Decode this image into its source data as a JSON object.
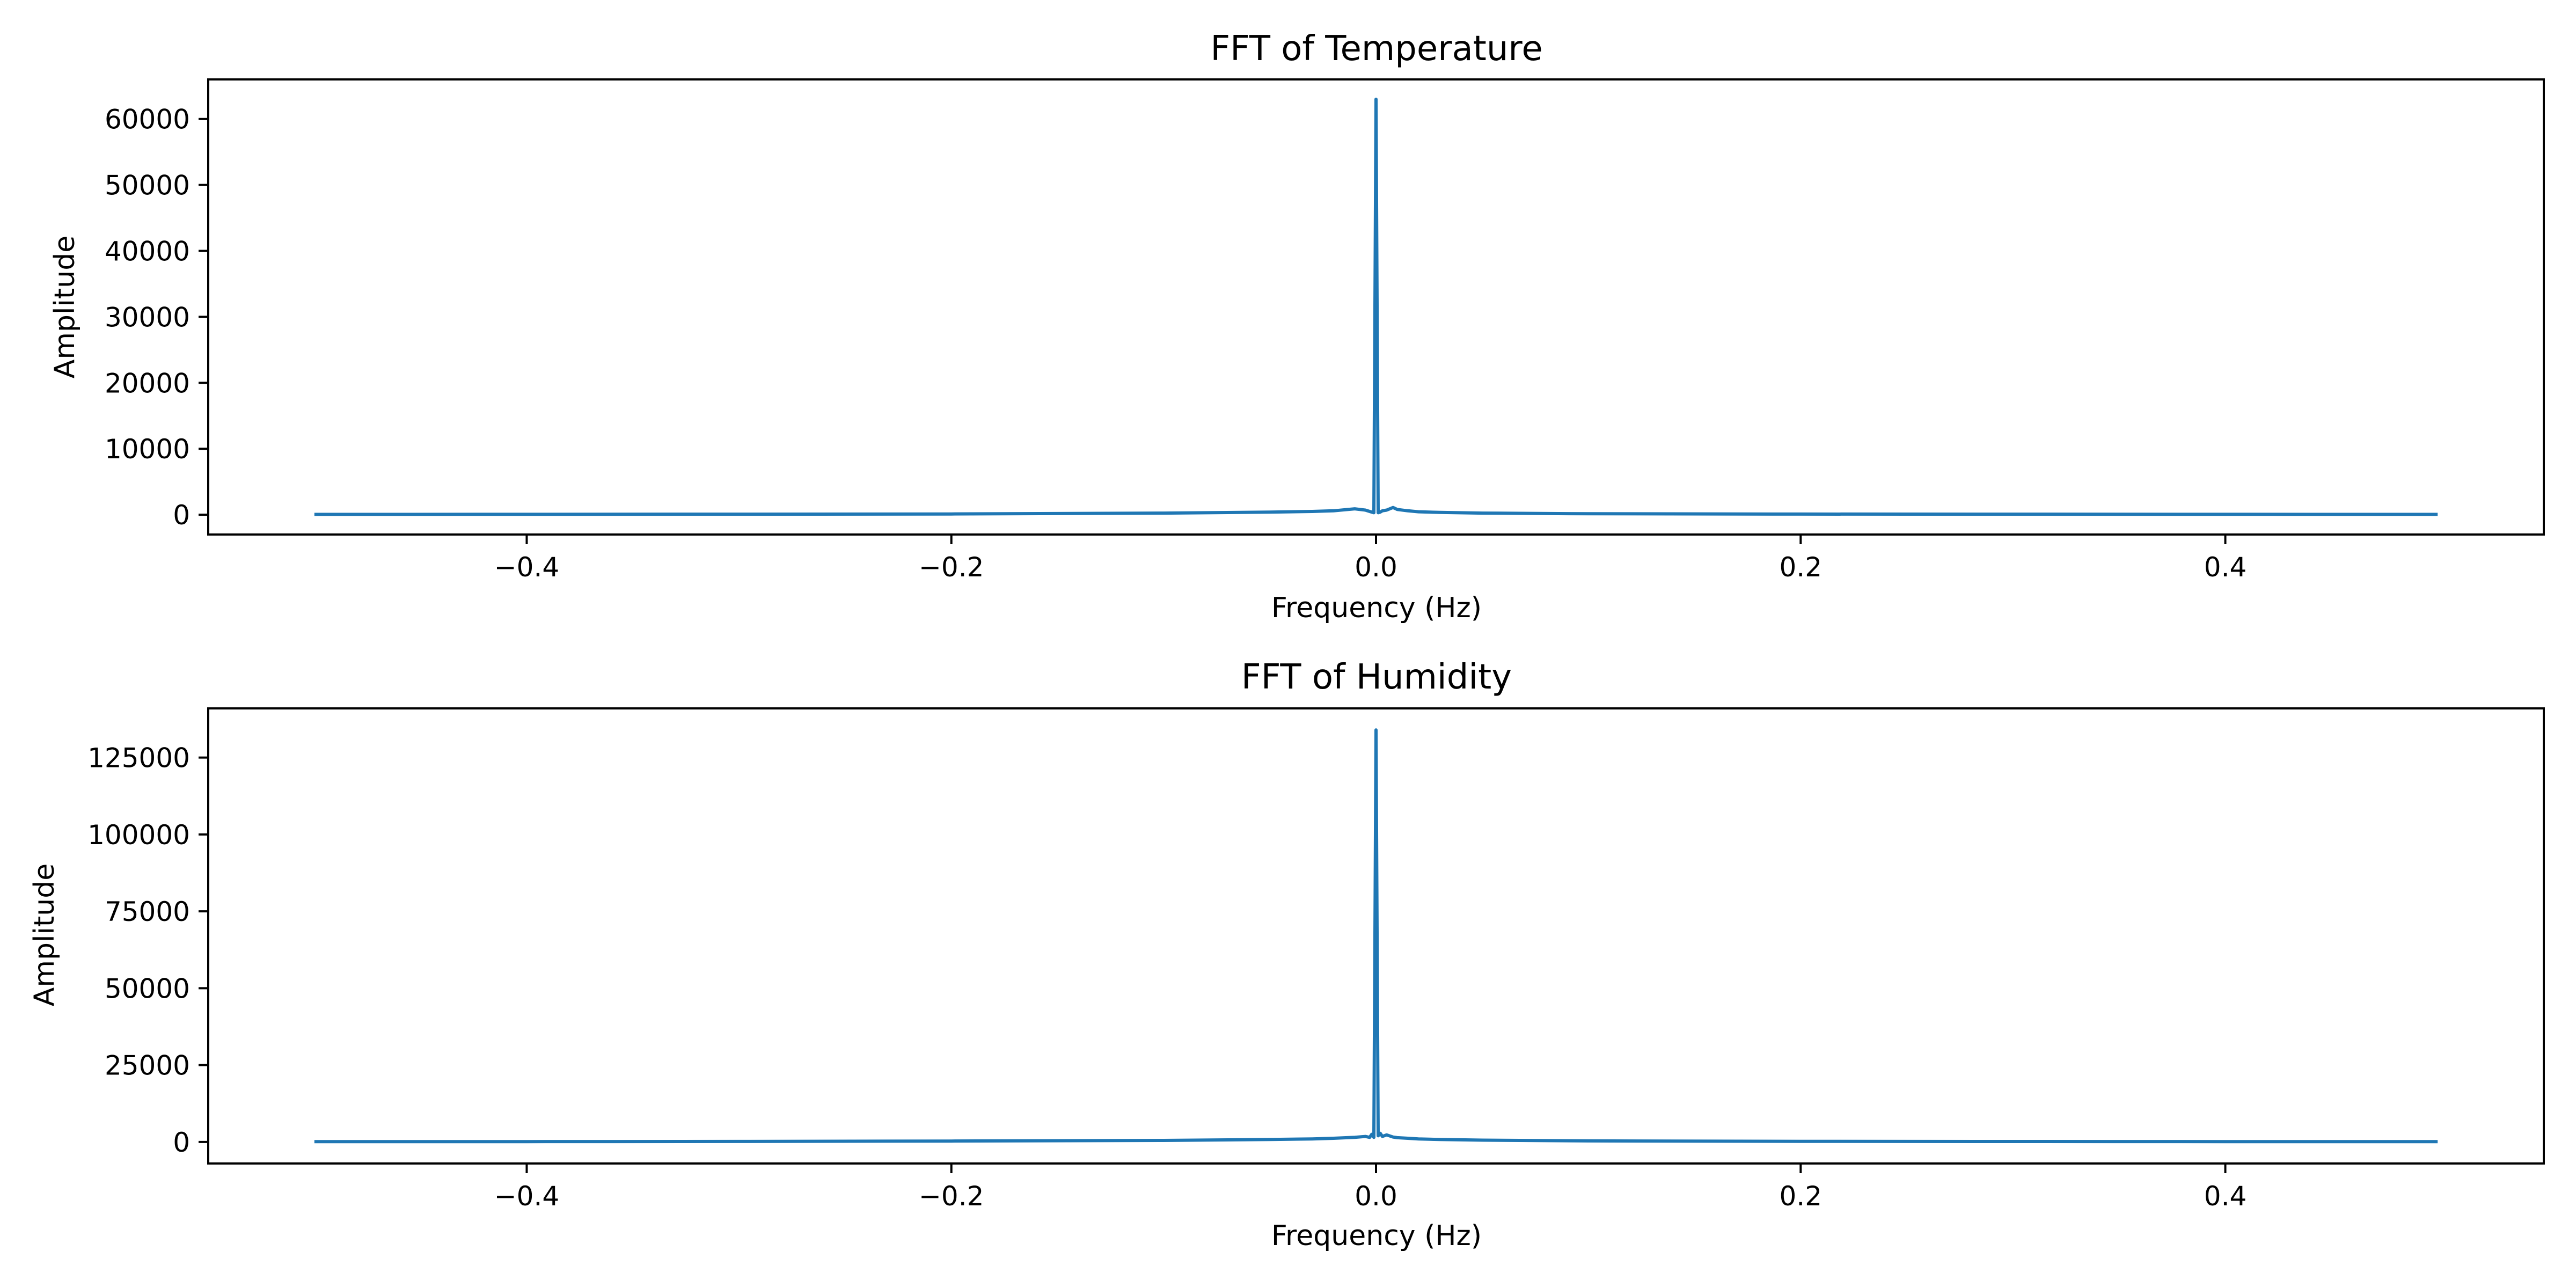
{
  "colors": {
    "line": "#1f77b4",
    "axes": "#000000",
    "background": "#ffffff"
  },
  "chart_data": [
    {
      "type": "line",
      "title": "FFT of Temperature",
      "xlabel": "Frequency (Hz)",
      "ylabel": "Amplitude",
      "xlim": [
        -0.55,
        0.55
      ],
      "ylim": [
        -3000,
        66000
      ],
      "grid": false,
      "xticks": [
        -0.4,
        -0.2,
        0.0,
        0.2,
        0.4
      ],
      "xtick_labels": [
        "−0.4",
        "−0.2",
        "0.0",
        "0.2",
        "0.4"
      ],
      "yticks": [
        0,
        10000,
        20000,
        30000,
        40000,
        50000,
        60000
      ],
      "ytick_labels": [
        "0",
        "10000",
        "20000",
        "30000",
        "40000",
        "50000",
        "60000"
      ],
      "series": [
        {
          "x": [
            -0.5,
            -0.4,
            -0.3,
            -0.2,
            -0.1,
            -0.05,
            -0.03,
            -0.02,
            -0.01,
            -0.005,
            -0.003,
            -0.002,
            -0.001,
            0.0,
            0.001,
            0.002,
            0.003,
            0.005,
            0.008,
            0.01,
            0.015,
            0.02,
            0.03,
            0.05,
            0.1,
            0.2,
            0.3,
            0.4,
            0.5
          ],
          "y": [
            50,
            60,
            80,
            120,
            250,
            400,
            500,
            600,
            900,
            700,
            500,
            400,
            300,
            63000,
            300,
            400,
            600,
            700,
            1100,
            800,
            600,
            450,
            350,
            250,
            150,
            100,
            80,
            60,
            50
          ]
        }
      ]
    },
    {
      "type": "line",
      "title": "FFT of Humidity",
      "xlabel": "Frequency (Hz)",
      "ylabel": "Amplitude",
      "xlim": [
        -0.55,
        0.55
      ],
      "ylim": [
        -7000,
        141000
      ],
      "grid": false,
      "xticks": [
        -0.4,
        -0.2,
        0.0,
        0.2,
        0.4
      ],
      "xtick_labels": [
        "−0.4",
        "−0.2",
        "0.0",
        "0.2",
        "0.4"
      ],
      "yticks": [
        0,
        25000,
        50000,
        75000,
        100000,
        125000
      ],
      "ytick_labels": [
        "0",
        "25000",
        "50000",
        "75000",
        "100000",
        "125000"
      ],
      "series": [
        {
          "x": [
            -0.5,
            -0.4,
            -0.3,
            -0.2,
            -0.1,
            -0.05,
            -0.03,
            -0.02,
            -0.01,
            -0.005,
            -0.003,
            -0.002,
            -0.001,
            0.0,
            0.001,
            0.002,
            0.003,
            0.005,
            0.008,
            0.01,
            0.015,
            0.02,
            0.03,
            0.05,
            0.1,
            0.2,
            0.3,
            0.4,
            0.5
          ],
          "y": [
            100,
            120,
            180,
            300,
            500,
            800,
            1000,
            1200,
            1500,
            1800,
            1500,
            2500,
            1500,
            134000,
            2000,
            2800,
            1800,
            2300,
            1600,
            1400,
            1200,
            1000,
            800,
            600,
            350,
            200,
            150,
            120,
            100
          ]
        }
      ]
    }
  ]
}
